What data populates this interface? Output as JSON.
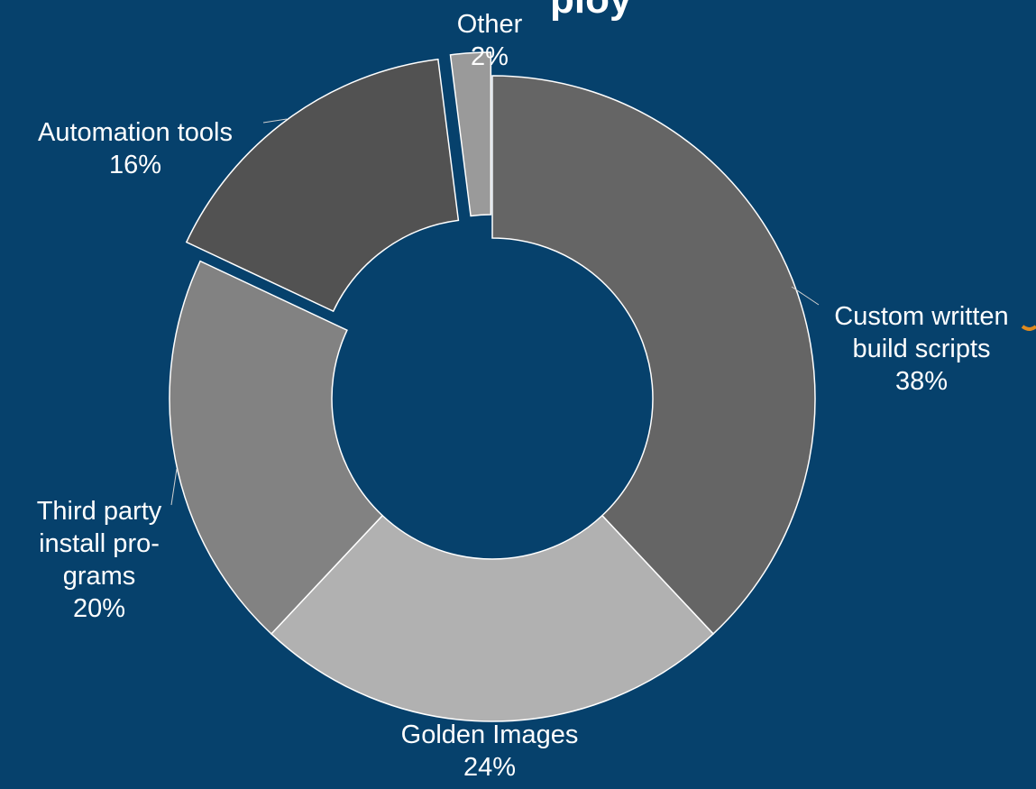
{
  "chart_data": {
    "type": "pie",
    "variant": "donut",
    "title": "",
    "xlabel": "",
    "ylabel": "",
    "categories": [
      "Custom written build scripts",
      "Golden Images",
      "Third party install programs",
      "Automation tools",
      "Other"
    ],
    "values": [
      38,
      24,
      20,
      16,
      2
    ],
    "unit": "%",
    "labels": [
      {
        "lines": [
          "Custom written",
          "build scripts"
        ],
        "pct": "38%"
      },
      {
        "lines": [
          "Golden Images"
        ],
        "pct": "24%"
      },
      {
        "lines": [
          "Third party",
          "install pro-",
          "grams"
        ],
        "pct": "20%"
      },
      {
        "lines": [
          "Automation tools"
        ],
        "pct": "16%"
      },
      {
        "lines": [
          "Other"
        ],
        "pct": "2%"
      }
    ],
    "exploded": [
      "Automation tools",
      "Other"
    ],
    "legend": "none",
    "colors": [
      "#656565",
      "#b1b1b1",
      "#828282",
      "#525252",
      "#9a9a9a"
    ],
    "background": "#06416c",
    "border_color": "#ffffff",
    "title_fragment_visible": "ploy"
  }
}
